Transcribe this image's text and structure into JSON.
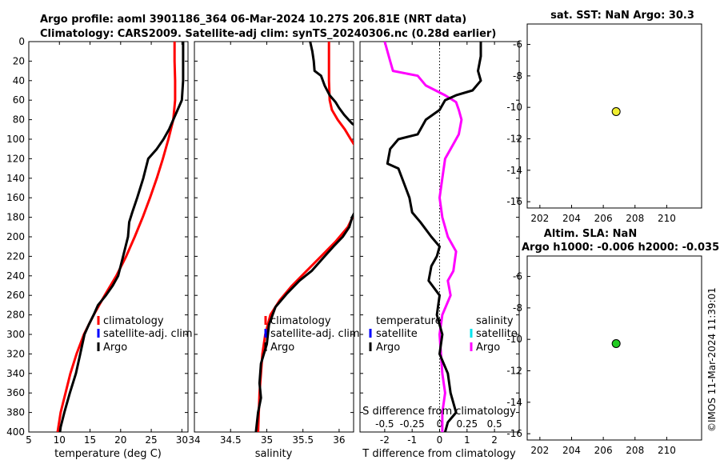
{
  "chart_data": {
    "type": "line",
    "title_line1": "Argo profile: aoml 3901186_364 06-Mar-2024 10.27S 206.81E (NRT data)",
    "title_line2": "Climatology: CARS2009. Satellite-adj clim: synTS_20240306.nc (0.28d earlier)",
    "watermark": "©IMOS 11-Mar-2024 11:39:01",
    "depth_ticks": [
      "0",
      "20",
      "40",
      "60",
      "80",
      "100",
      "120",
      "140",
      "160",
      "180",
      "200",
      "220",
      "240",
      "260",
      "280",
      "300",
      "320",
      "340",
      "360",
      "380",
      "400"
    ],
    "depth_range": [
      0,
      400
    ],
    "colors": {
      "climatology": "#ff0000",
      "satellite": "#0000ff",
      "satellite_s": "#00e5ee",
      "argo": "#000000",
      "argo_s": "#ff00ff"
    },
    "temperature": {
      "xlabel": "temperature (deg C)",
      "xlim": [
        5,
        31
      ],
      "xticks": [
        "5",
        "10",
        "15",
        "20",
        "25",
        "30"
      ],
      "tick_values": [
        5,
        10,
        15,
        20,
        25,
        30
      ],
      "legend": {
        "climatology": "climatology",
        "satellite": "satellite-adj. clim",
        "argo": "Argo"
      },
      "climatology": [
        [
          28.8,
          0
        ],
        [
          28.8,
          20
        ],
        [
          28.9,
          40
        ],
        [
          28.9,
          60
        ],
        [
          28.6,
          80
        ],
        [
          27.8,
          100
        ],
        [
          26.9,
          120
        ],
        [
          25.9,
          140
        ],
        [
          24.8,
          160
        ],
        [
          23.6,
          180
        ],
        [
          22.3,
          200
        ],
        [
          20.9,
          220
        ],
        [
          19.3,
          240
        ],
        [
          17.4,
          260
        ],
        [
          15.6,
          280
        ],
        [
          14.0,
          300
        ],
        [
          12.8,
          320
        ],
        [
          11.8,
          340
        ],
        [
          11.0,
          360
        ],
        [
          10.2,
          380
        ],
        [
          9.7,
          400
        ]
      ],
      "argo": [
        [
          30.2,
          0
        ],
        [
          30.2,
          20
        ],
        [
          30.2,
          40
        ],
        [
          30.0,
          60
        ],
        [
          29.3,
          70
        ],
        [
          28.6,
          80
        ],
        [
          27.9,
          90
        ],
        [
          27.0,
          100
        ],
        [
          25.9,
          110
        ],
        [
          24.5,
          120
        ],
        [
          23.7,
          140
        ],
        [
          22.7,
          160
        ],
        [
          21.9,
          175
        ],
        [
          21.4,
          185
        ],
        [
          21.2,
          200
        ],
        [
          20.4,
          220
        ],
        [
          19.6,
          240
        ],
        [
          18.7,
          250
        ],
        [
          17.6,
          260
        ],
        [
          16.3,
          270
        ],
        [
          15.6,
          280
        ],
        [
          14.8,
          290
        ],
        [
          14.1,
          300
        ],
        [
          13.4,
          320
        ],
        [
          12.7,
          340
        ],
        [
          11.7,
          360
        ],
        [
          10.8,
          380
        ],
        [
          10.2,
          395
        ],
        [
          10.1,
          400
        ]
      ]
    },
    "salinity": {
      "xlabel": "salinity",
      "xlim": [
        34,
        36.2
      ],
      "xticks": [
        "34",
        "34.5",
        "35",
        "35.5",
        "36"
      ],
      "tick_values": [
        34,
        34.5,
        35,
        35.5,
        36
      ],
      "legend": {
        "climatology": "climatology",
        "satellite": "satellite-adj. clim",
        "argo": "Argo"
      },
      "climatology": [
        [
          35.86,
          0
        ],
        [
          35.86,
          20
        ],
        [
          35.86,
          40
        ],
        [
          35.87,
          60
        ],
        [
          35.9,
          70
        ],
        [
          35.98,
          80
        ],
        [
          36.08,
          90
        ],
        [
          36.16,
          100
        ],
        [
          36.22,
          107
        ],
        [
          36.22,
          175
        ],
        [
          36.12,
          190
        ],
        [
          35.95,
          205
        ],
        [
          35.75,
          220
        ],
        [
          35.55,
          235
        ],
        [
          35.35,
          250
        ],
        [
          35.18,
          265
        ],
        [
          35.05,
          280
        ],
        [
          34.98,
          300
        ],
        [
          34.94,
          320
        ],
        [
          34.92,
          340
        ],
        [
          34.9,
          360
        ],
        [
          34.89,
          380
        ],
        [
          34.88,
          400
        ]
      ],
      "argo": [
        [
          35.6,
          0
        ],
        [
          35.63,
          10
        ],
        [
          35.65,
          20
        ],
        [
          35.66,
          30
        ],
        [
          35.75,
          35
        ],
        [
          35.8,
          45
        ],
        [
          35.87,
          55
        ],
        [
          35.95,
          62
        ],
        [
          36.0,
          68
        ],
        [
          36.07,
          75
        ],
        [
          36.13,
          80
        ],
        [
          36.18,
          84
        ],
        [
          36.22,
          86
        ],
        [
          36.22,
          174
        ],
        [
          36.18,
          180
        ],
        [
          36.14,
          190
        ],
        [
          36.05,
          200
        ],
        [
          35.92,
          210
        ],
        [
          35.8,
          220
        ],
        [
          35.62,
          235
        ],
        [
          35.45,
          245
        ],
        [
          35.28,
          258
        ],
        [
          35.12,
          272
        ],
        [
          35.03,
          290
        ],
        [
          35.0,
          310
        ],
        [
          34.92,
          330
        ],
        [
          34.9,
          350
        ],
        [
          34.92,
          365
        ],
        [
          34.88,
          380
        ],
        [
          34.85,
          400
        ]
      ]
    },
    "difference": {
      "xlabel": "T difference from climatology",
      "xlabel_s": "S difference from climatology",
      "xlim": [
        -2.9,
        2.9
      ],
      "xticks": [
        "-2",
        "-1",
        "0",
        "1",
        "2"
      ],
      "tick_values": [
        -2,
        -1,
        0,
        1,
        2
      ],
      "s_ticks": [
        "-0.5",
        "-0.25",
        "0",
        "0.25",
        "0.5"
      ],
      "s_tick_values": [
        -2,
        -1,
        0,
        1,
        2
      ],
      "legend": {
        "temperature": "temperature",
        "salinity": "salinity",
        "satellite_t": "satellite",
        "argo_t": "Argo",
        "satellite_s": "satellite",
        "argo_s": "Argo"
      },
      "argo_t": [
        [
          1.5,
          0
        ],
        [
          1.5,
          15
        ],
        [
          1.4,
          30
        ],
        [
          1.5,
          40
        ],
        [
          1.2,
          50
        ],
        [
          0.6,
          55
        ],
        [
          0.2,
          60
        ],
        [
          0.0,
          70
        ],
        [
          -0.5,
          80
        ],
        [
          -0.8,
          95
        ],
        [
          -1.5,
          100
        ],
        [
          -1.8,
          110
        ],
        [
          -1.9,
          125
        ],
        [
          -1.5,
          130
        ],
        [
          -1.3,
          145
        ],
        [
          -1.1,
          160
        ],
        [
          -1.0,
          175
        ],
        [
          -0.7,
          185
        ],
        [
          -0.3,
          200
        ],
        [
          0.0,
          210
        ],
        [
          -0.1,
          220
        ],
        [
          -0.3,
          230
        ],
        [
          -0.4,
          245
        ],
        [
          0.0,
          260
        ],
        [
          -0.1,
          280
        ],
        [
          0.1,
          300
        ],
        [
          0.0,
          320
        ],
        [
          0.3,
          340
        ],
        [
          0.4,
          360
        ],
        [
          0.6,
          380
        ],
        [
          0.3,
          390
        ],
        [
          0.2,
          400
        ]
      ],
      "argo_s": [
        [
          -2.0,
          0
        ],
        [
          -1.8,
          20
        ],
        [
          -1.7,
          30
        ],
        [
          -0.8,
          35
        ],
        [
          -0.5,
          45
        ],
        [
          0.2,
          55
        ],
        [
          0.6,
          62
        ],
        [
          0.7,
          70
        ],
        [
          0.8,
          80
        ],
        [
          0.7,
          95
        ],
        [
          0.5,
          105
        ],
        [
          0.2,
          120
        ],
        [
          0.1,
          140
        ],
        [
          0.0,
          160
        ],
        [
          0.1,
          180
        ],
        [
          0.3,
          200
        ],
        [
          0.6,
          215
        ],
        [
          0.5,
          235
        ],
        [
          0.3,
          245
        ],
        [
          0.4,
          260
        ],
        [
          0.1,
          280
        ],
        [
          0.0,
          300
        ],
        [
          0.1,
          340
        ],
        [
          0.2,
          360
        ],
        [
          0.1,
          380
        ],
        [
          0.1,
          400
        ]
      ]
    },
    "map_sst": {
      "title": "sat. SST: NaN Argo: 30.3",
      "xticks": [
        "202",
        "204",
        "206",
        "208",
        "210"
      ],
      "tick_values": [
        202,
        204,
        206,
        208,
        210
      ],
      "yticks": [
        "-6",
        "-8",
        "-10",
        "-12",
        "-14",
        "-16"
      ],
      "ytick_values": [
        -6,
        -8,
        -10,
        -12,
        -14,
        -16
      ],
      "xlim": [
        201.2,
        212.2
      ],
      "ylim": [
        -16.4,
        -4.7
      ],
      "point": [
        206.81,
        -10.27
      ],
      "point_color": "#f0ee30"
    },
    "map_sla": {
      "title": "Altim. SLA: NaN",
      "subtitle": "Argo h1000: -0.006 h2000: -0.035",
      "xticks": [
        "202",
        "204",
        "206",
        "208",
        "210"
      ],
      "tick_values": [
        202,
        204,
        206,
        208,
        210
      ],
      "yticks": [
        "-6",
        "-8",
        "-10",
        "-12",
        "-14",
        "-16"
      ],
      "ytick_values": [
        -6,
        -8,
        -10,
        -12,
        -14,
        -16
      ],
      "xlim": [
        201.2,
        212.2
      ],
      "ylim": [
        -16.4,
        -4.7
      ],
      "point": [
        206.81,
        -10.27
      ],
      "point_color": "#22cc22"
    }
  }
}
